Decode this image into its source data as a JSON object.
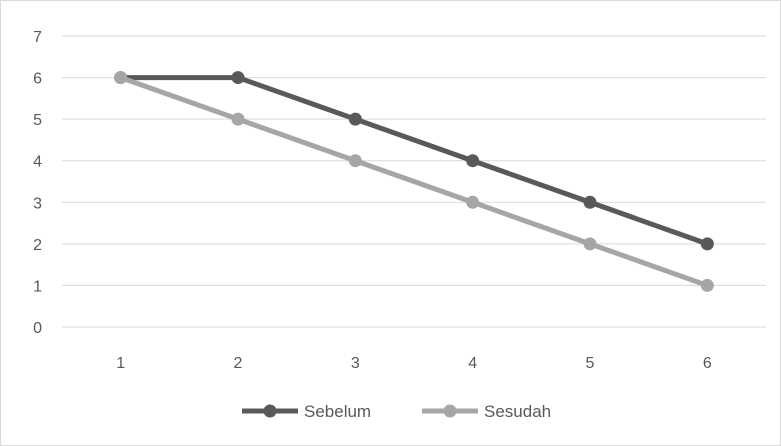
{
  "chart_data": {
    "type": "line",
    "title": "",
    "xlabel": "",
    "ylabel": "",
    "x": [
      "1",
      "2",
      "3",
      "4",
      "5",
      "6"
    ],
    "ylim": [
      0,
      7
    ],
    "yticks": [
      "0",
      "1",
      "2",
      "3",
      "4",
      "5",
      "6",
      "7"
    ],
    "grid": true,
    "legend_position": "bottom",
    "series": [
      {
        "name": "Sebelum",
        "values": [
          6,
          6,
          5,
          4,
          3,
          2
        ],
        "color": "#595959"
      },
      {
        "name": "Sesudah",
        "values": [
          6,
          5,
          4,
          3,
          2,
          1
        ],
        "color": "#a6a6a6"
      }
    ]
  }
}
